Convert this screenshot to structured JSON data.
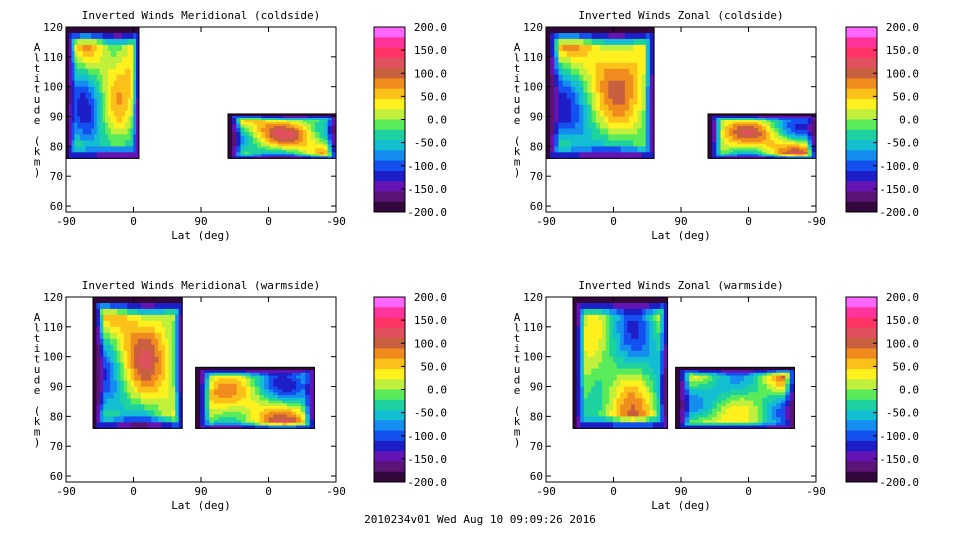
{
  "chart_data": [
    {
      "type": "heatmap",
      "title": "Inverted Winds Meridional (coldside)",
      "xlabel": "Lat (deg)",
      "ylabel": "Altitude (km)",
      "x_tick_labels": [
        "-90",
        "0",
        "90",
        "0",
        "-90"
      ],
      "y_ticks": [
        60,
        70,
        80,
        90,
        100,
        110,
        120
      ],
      "ylim": [
        58,
        120
      ],
      "colorbar_ticks": [
        "200.0",
        "150.0",
        "100.0",
        "50.0",
        "0.0",
        "-50.0",
        "-100.0",
        "-150.0",
        "-200.0"
      ],
      "colorbar_range": [
        -200,
        200
      ]
    },
    {
      "type": "heatmap",
      "title": "Inverted Winds Zonal (coldside)",
      "xlabel": "Lat (deg)",
      "ylabel": "Altitude (km)",
      "x_tick_labels": [
        "-90",
        "0",
        "90",
        "0",
        "-90"
      ],
      "y_ticks": [
        60,
        70,
        80,
        90,
        100,
        110,
        120
      ],
      "ylim": [
        58,
        120
      ],
      "colorbar_ticks": [
        "200.0",
        "150.0",
        "100.0",
        "50.0",
        "0.0",
        "-50.0",
        "-100.0",
        "-150.0",
        "-200.0"
      ],
      "colorbar_range": [
        -200,
        200
      ]
    },
    {
      "type": "heatmap",
      "title": "Inverted Winds Meridional (warmside)",
      "xlabel": "Lat (deg)",
      "ylabel": "Altitude (km)",
      "x_tick_labels": [
        "-90",
        "0",
        "90",
        "0",
        "-90"
      ],
      "y_ticks": [
        60,
        70,
        80,
        90,
        100,
        110,
        120
      ],
      "ylim": [
        58,
        120
      ],
      "colorbar_ticks": [
        "200.0",
        "150.0",
        "100.0",
        "50.0",
        "0.0",
        "-50.0",
        "-100.0",
        "-150.0",
        "-200.0"
      ],
      "colorbar_range": [
        -200,
        200
      ]
    },
    {
      "type": "heatmap",
      "title": "Inverted Winds Zonal (warmside)",
      "xlabel": "Lat (deg)",
      "ylabel": "Altitude (km)",
      "x_tick_labels": [
        "-90",
        "0",
        "90",
        "0",
        "-90"
      ],
      "y_ticks": [
        60,
        70,
        80,
        90,
        100,
        110,
        120
      ],
      "ylim": [
        58,
        120
      ],
      "colorbar_ticks": [
        "200.0",
        "150.0",
        "100.0",
        "50.0",
        "0.0",
        "-50.0",
        "-100.0",
        "-150.0",
        "-200.0"
      ],
      "colorbar_range": [
        -200,
        200
      ]
    }
  ],
  "footer": "2010234v01 Wed Aug 10 09:09:26 2016",
  "colors": {
    "colorbar_bands": [
      "#ff66ff",
      "#ff3399",
      "#ff3366",
      "#e0505f",
      "#c86040",
      "#f08c1e",
      "#fcc01a",
      "#fff01e",
      "#c0f03c",
      "#5aeb5a",
      "#1ed2a0",
      "#14bed2",
      "#148cf0",
      "#1450f0",
      "#1e1ec8",
      "#6414b4",
      "#5a1478",
      "#32083c"
    ]
  }
}
